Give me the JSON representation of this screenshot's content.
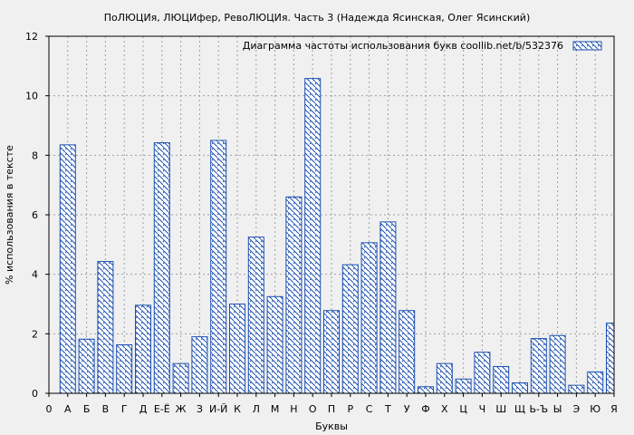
{
  "chart_data": {
    "type": "bar",
    "title": "ПоЛЮЦИя, ЛЮЦИфер, РевоЛЮЦИя. Часть 3 (Надежда Ясинская, Олег Ясинский)",
    "xlabel": "Буквы",
    "ylabel": "% использования в тексте",
    "ylim": [
      0,
      12
    ],
    "yticks": [
      "0",
      "2",
      "4",
      "6",
      "8",
      "10",
      "12"
    ],
    "grid": true,
    "legend": {
      "position": "top-right",
      "label": "Диаграмма частоты использования букв  coollib.net/b/532376"
    },
    "categories": [
      "0",
      "А",
      "Б",
      "В",
      "Г",
      "Д",
      "Е-Ё",
      "Ж",
      "З",
      "И-Й",
      "К",
      "Л",
      "М",
      "Н",
      "О",
      "П",
      "Р",
      "С",
      "Т",
      "У",
      "Ф",
      "Х",
      "Ц",
      "Ч",
      "Ш",
      "Щ",
      "Ь-Ъ",
      "Ы",
      "Э",
      "Ю",
      "Я"
    ],
    "values": [
      0,
      8.35,
      1.82,
      4.43,
      1.63,
      2.96,
      8.42,
      1.0,
      1.9,
      8.5,
      3.0,
      5.25,
      3.25,
      6.6,
      10.58,
      2.78,
      4.32,
      5.06,
      5.76,
      2.78,
      0.22,
      1.0,
      0.48,
      1.38,
      0.9,
      0.35,
      1.84,
      1.94,
      0.27,
      0.72,
      2.36
    ]
  }
}
